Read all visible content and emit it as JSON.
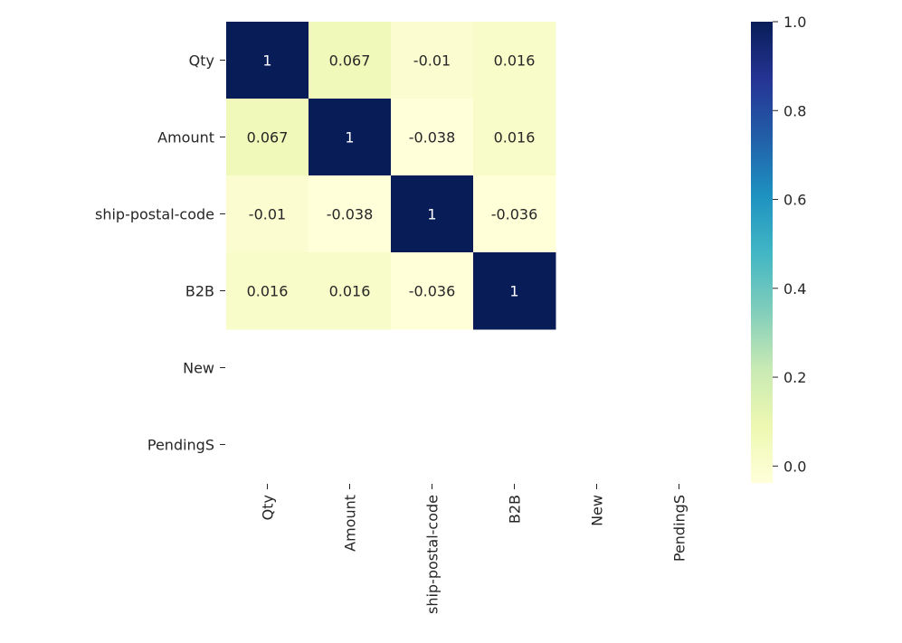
{
  "chart_data": {
    "type": "heatmap",
    "title": "",
    "xlabel": "",
    "ylabel": "",
    "rows": [
      "Qty",
      "Amount",
      "ship-postal-code",
      "B2B",
      "New",
      "PendingS"
    ],
    "columns": [
      "Qty",
      "Amount",
      "ship-postal-code",
      "B2B",
      "New",
      "PendingS"
    ],
    "values": [
      [
        1,
        0.067,
        -0.01,
        0.016,
        null,
        null
      ],
      [
        0.067,
        1,
        -0.038,
        0.016,
        null,
        null
      ],
      [
        -0.01,
        -0.038,
        1,
        -0.036,
        null,
        null
      ],
      [
        0.016,
        0.016,
        -0.036,
        1,
        null,
        null
      ],
      [
        null,
        null,
        null,
        null,
        null,
        null
      ],
      [
        null,
        null,
        null,
        null,
        null,
        null
      ]
    ],
    "annotations": [
      [
        "1",
        "0.067",
        "-0.01",
        "0.016",
        "",
        ""
      ],
      [
        "0.067",
        "1",
        "-0.038",
        "0.016",
        "",
        ""
      ],
      [
        "-0.01",
        "-0.038",
        "1",
        "-0.036",
        "",
        ""
      ],
      [
        "0.016",
        "0.016",
        "-0.036",
        "1",
        "",
        ""
      ],
      [
        "",
        "",
        "",
        "",
        "",
        ""
      ],
      [
        "",
        "",
        "",
        "",
        "",
        ""
      ]
    ],
    "colormap": "YlGnBu",
    "colormap_stops": [
      "#ffffd9",
      "#edf8b1",
      "#c7e9b4",
      "#7fcdbb",
      "#41b6c4",
      "#1d91c0",
      "#225ea8",
      "#253494",
      "#081d58"
    ],
    "vmin": -0.038,
    "vmax": 1.0,
    "colorbar": {
      "ticks": [
        0.0,
        0.2,
        0.4,
        0.6,
        0.8,
        1.0
      ],
      "tick_labels": [
        "0.0",
        "0.2",
        "0.4",
        "0.6",
        "0.8",
        "1.0"
      ]
    },
    "grid": false,
    "legend": "colorbar-right"
  }
}
